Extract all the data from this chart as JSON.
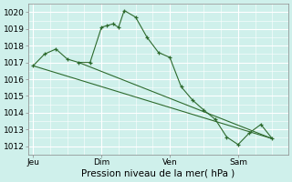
{
  "background_color": "#cff0eb",
  "plot_bg_color": "#cff0eb",
  "grid_color": "#ffffff",
  "line_color": "#2d6a2d",
  "marker_color": "#2d6a2d",
  "xlabel": "Pression niveau de la mer( hPa )",
  "ylim": [
    1011.5,
    1020.5
  ],
  "yticks": [
    1012,
    1013,
    1014,
    1015,
    1016,
    1017,
    1018,
    1019,
    1020
  ],
  "xtick_labels": [
    "Jeu",
    "Dim",
    "Ven",
    "Sam"
  ],
  "xtick_positions": [
    0,
    3,
    6,
    9
  ],
  "xlim": [
    -0.2,
    11.2
  ],
  "series1_x": [
    0,
    0.5,
    1.0,
    1.5,
    2.0,
    2.5,
    3.0,
    3.25,
    3.5,
    3.75,
    4.0,
    4.5,
    5.0,
    5.5,
    6.0,
    6.5,
    7.0,
    7.5,
    8.0,
    8.5,
    9.0,
    9.5,
    10.0,
    10.5
  ],
  "series1_y": [
    1016.8,
    1017.5,
    1017.8,
    1017.2,
    1017.0,
    1017.0,
    1019.1,
    1019.2,
    1019.3,
    1019.1,
    1020.1,
    1019.7,
    1018.5,
    1017.6,
    1017.3,
    1015.55,
    1014.75,
    1014.15,
    1013.6,
    1012.55,
    1012.1,
    1012.8,
    1013.3,
    1012.45
  ],
  "series2_x": [
    2.0,
    10.5
  ],
  "series2_y": [
    1017.0,
    1012.45
  ],
  "series3_x": [
    0,
    10.5
  ],
  "series3_y": [
    1016.8,
    1012.45
  ],
  "xlabel_fontsize": 7.5,
  "tick_fontsize": 6.5,
  "fig_width": 3.2,
  "fig_height": 2.0,
  "dpi": 100
}
